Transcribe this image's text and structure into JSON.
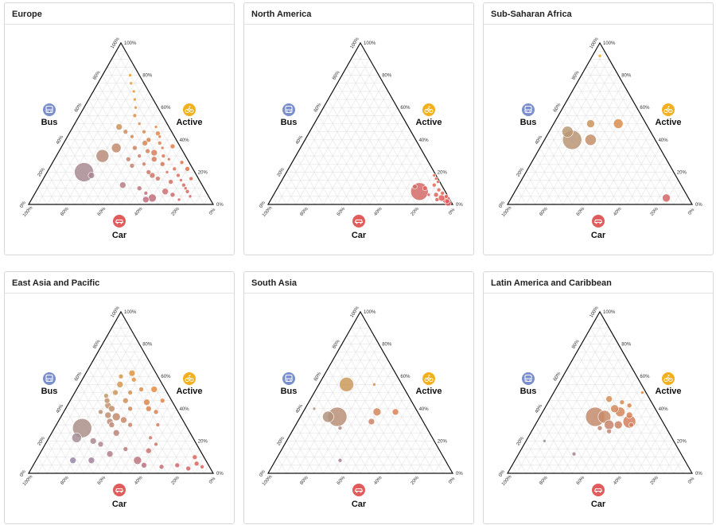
{
  "colors": {
    "bus": "#7a8fcb",
    "active": "#f2b01e",
    "car": "#e15c5c",
    "grid": "#e3e3e3",
    "axis": "#111111"
  },
  "icons": {
    "bus": "bus-icon",
    "active": "bicycle-icon",
    "car": "car-icon"
  },
  "chart_data": [
    {
      "type": "scatter",
      "title": "Europe",
      "corner_labels": {
        "top": "Active",
        "left": "Bus",
        "right": "Car"
      },
      "ticks": [
        "0%",
        "20%",
        "40%",
        "60%",
        "80%",
        "100%"
      ],
      "points": [
        {
          "active": 70,
          "car": 22,
          "bus": 8,
          "r": 2
        },
        {
          "active": 60,
          "car": 28,
          "bus": 12,
          "r": 2
        },
        {
          "active": 55,
          "car": 30,
          "bus": 15,
          "r": 2.5
        },
        {
          "active": 50,
          "car": 35,
          "bus": 15,
          "r": 2
        },
        {
          "active": 45,
          "car": 40,
          "bus": 15,
          "r": 2.5
        },
        {
          "active": 48,
          "car": 45,
          "bus": 7,
          "r": 2
        },
        {
          "active": 40,
          "car": 45,
          "bus": 15,
          "r": 3
        },
        {
          "active": 42,
          "car": 50,
          "bus": 8,
          "r": 2
        },
        {
          "active": 38,
          "car": 52,
          "bus": 10,
          "r": 2.5
        },
        {
          "active": 35,
          "car": 55,
          "bus": 10,
          "r": 2
        },
        {
          "active": 33,
          "car": 48,
          "bus": 19,
          "r": 3
        },
        {
          "active": 30,
          "car": 58,
          "bus": 12,
          "r": 2.5
        },
        {
          "active": 28,
          "car": 62,
          "bus": 10,
          "r": 2
        },
        {
          "active": 25,
          "car": 60,
          "bus": 15,
          "r": 3
        },
        {
          "active": 22,
          "car": 68,
          "bus": 10,
          "r": 2.5
        },
        {
          "active": 20,
          "car": 65,
          "bus": 15,
          "r": 2
        },
        {
          "active": 18,
          "car": 72,
          "bus": 10,
          "r": 2.5
        },
        {
          "active": 15,
          "car": 75,
          "bus": 10,
          "r": 2
        },
        {
          "active": 14,
          "car": 70,
          "bus": 16,
          "r": 3
        },
        {
          "active": 12,
          "car": 78,
          "bus": 10,
          "r": 2.5
        },
        {
          "active": 10,
          "car": 80,
          "bus": 10,
          "r": 2
        },
        {
          "active": 8,
          "car": 82,
          "bus": 10,
          "r": 2.5
        },
        {
          "active": 6,
          "car": 75,
          "bus": 19,
          "r": 3
        },
        {
          "active": 5,
          "car": 85,
          "bus": 10,
          "r": 2
        },
        {
          "active": 3,
          "car": 80,
          "bus": 17,
          "r": 2
        },
        {
          "active": 8,
          "car": 70,
          "bus": 22,
          "r": 4
        },
        {
          "active": 4,
          "car": 65,
          "bus": 31,
          "r": 5
        },
        {
          "active": 3,
          "car": 62,
          "bus": 35,
          "r": 4
        },
        {
          "active": 16,
          "car": 62,
          "bus": 22,
          "r": 3
        },
        {
          "active": 20,
          "car": 55,
          "bus": 25,
          "r": 3
        },
        {
          "active": 25,
          "car": 50,
          "bus": 25,
          "r": 2.5
        },
        {
          "active": 30,
          "car": 45,
          "bus": 25,
          "r": 2.5
        },
        {
          "active": 35,
          "car": 40,
          "bus": 25,
          "r": 3
        },
        {
          "active": 42,
          "car": 35,
          "bus": 23,
          "r": 2.5
        },
        {
          "active": 45,
          "car": 30,
          "bus": 25,
          "r": 3
        },
        {
          "active": 48,
          "car": 25,
          "bus": 27,
          "r": 4
        },
        {
          "active": 35,
          "car": 30,
          "bus": 35,
          "r": 6
        },
        {
          "active": 30,
          "car": 25,
          "bus": 45,
          "r": 8
        },
        {
          "active": 20,
          "car": 20,
          "bus": 60,
          "r": 12
        },
        {
          "active": 18,
          "car": 25,
          "bus": 57,
          "r": 4
        },
        {
          "active": 12,
          "car": 45,
          "bus": 43,
          "r": 4
        },
        {
          "active": 28,
          "car": 40,
          "bus": 32,
          "r": 3
        },
        {
          "active": 24,
          "car": 44,
          "bus": 32,
          "r": 3
        },
        {
          "active": 32,
          "car": 52,
          "bus": 16,
          "r": 4
        },
        {
          "active": 36,
          "car": 60,
          "bus": 4,
          "r": 3
        },
        {
          "active": 26,
          "car": 70,
          "bus": 4,
          "r": 2.5
        },
        {
          "active": 16,
          "car": 80,
          "bus": 4,
          "r": 2.5
        },
        {
          "active": 22,
          "car": 75,
          "bus": 3,
          "r": 3
        },
        {
          "active": 10,
          "car": 55,
          "bus": 35,
          "r": 3
        },
        {
          "active": 7,
          "car": 60,
          "bus": 33,
          "r": 2.5
        },
        {
          "active": 44,
          "car": 48,
          "bus": 8,
          "r": 3
        },
        {
          "active": 38,
          "car": 44,
          "bus": 18,
          "r": 3.5
        },
        {
          "active": 28,
          "car": 54,
          "bus": 18,
          "r": 3.5
        },
        {
          "active": 18,
          "car": 58,
          "bus": 24,
          "r": 3.5
        },
        {
          "active": 65,
          "car": 25,
          "bus": 10,
          "r": 2
        },
        {
          "active": 75,
          "car": 18,
          "bus": 7,
          "r": 2
        },
        {
          "active": 80,
          "car": 15,
          "bus": 5,
          "r": 2
        }
      ]
    },
    {
      "type": "scatter",
      "title": "North America",
      "corner_labels": {
        "top": "Active",
        "left": "Bus",
        "right": "Car"
      },
      "ticks": [
        "0%",
        "20%",
        "40%",
        "60%",
        "80%",
        "100%"
      ],
      "points": [
        {
          "active": 8,
          "car": 78,
          "bus": 14,
          "r": 11
        },
        {
          "active": 10,
          "car": 80,
          "bus": 10,
          "r": 3
        },
        {
          "active": 12,
          "car": 84,
          "bus": 4,
          "r": 2.5
        },
        {
          "active": 6,
          "car": 88,
          "bus": 6,
          "r": 3
        },
        {
          "active": 4,
          "car": 92,
          "bus": 4,
          "r": 4
        },
        {
          "active": 3,
          "car": 95,
          "bus": 2,
          "r": 5
        },
        {
          "active": 2,
          "car": 96,
          "bus": 2,
          "r": 3
        },
        {
          "active": 5,
          "car": 94,
          "bus": 1,
          "r": 2.5
        },
        {
          "active": 7,
          "car": 91,
          "bus": 2,
          "r": 2.5
        },
        {
          "active": 9,
          "car": 88,
          "bus": 3,
          "r": 2.5
        },
        {
          "active": 14,
          "car": 85,
          "bus": 1,
          "r": 2
        },
        {
          "active": 16,
          "car": 83,
          "bus": 1,
          "r": 2
        },
        {
          "active": 18,
          "car": 81,
          "bus": 1,
          "r": 2
        },
        {
          "active": 1,
          "car": 97,
          "bus": 2,
          "r": 4
        },
        {
          "active": 3,
          "car": 90,
          "bus": 7,
          "r": 2.5
        },
        {
          "active": 6,
          "car": 84,
          "bus": 10,
          "r": 2
        },
        {
          "active": 11,
          "car": 74,
          "bus": 15,
          "r": 3
        }
      ]
    },
    {
      "type": "scatter",
      "title": "Sub-Saharan Africa",
      "corner_labels": {
        "top": "Active",
        "left": "Bus",
        "right": "Car"
      },
      "ticks": [
        "0%",
        "20%",
        "40%",
        "60%",
        "80%",
        "100%"
      ],
      "points": [
        {
          "active": 92,
          "car": 4,
          "bus": 4,
          "r": 2
        },
        {
          "active": 50,
          "car": 20,
          "bus": 30,
          "r": 5
        },
        {
          "active": 40,
          "car": 15,
          "bus": 45,
          "r": 12
        },
        {
          "active": 45,
          "car": 10,
          "bus": 45,
          "r": 7
        },
        {
          "active": 40,
          "car": 25,
          "bus": 35,
          "r": 7
        },
        {
          "active": 50,
          "car": 35,
          "bus": 15,
          "r": 6
        },
        {
          "active": 4,
          "car": 84,
          "bus": 12,
          "r": 5
        }
      ]
    },
    {
      "type": "scatter",
      "title": "East Asia and Pacific",
      "corner_labels": {
        "top": "Active",
        "left": "Bus",
        "right": "Car"
      },
      "ticks": [
        "0%",
        "20%",
        "40%",
        "60%",
        "80%",
        "100%"
      ],
      "points": [
        {
          "active": 60,
          "car": 20,
          "bus": 20,
          "r": 3
        },
        {
          "active": 55,
          "car": 22,
          "bus": 23,
          "r": 4
        },
        {
          "active": 50,
          "car": 22,
          "bus": 28,
          "r": 3.5
        },
        {
          "active": 48,
          "car": 18,
          "bus": 34,
          "r": 3
        },
        {
          "active": 45,
          "car": 20,
          "bus": 35,
          "r": 3.5
        },
        {
          "active": 42,
          "car": 22,
          "bus": 36,
          "r": 4
        },
        {
          "active": 40,
          "car": 25,
          "bus": 35,
          "r": 4
        },
        {
          "active": 38,
          "car": 20,
          "bus": 42,
          "r": 3
        },
        {
          "active": 36,
          "car": 25,
          "bus": 39,
          "r": 4
        },
        {
          "active": 35,
          "car": 30,
          "bus": 35,
          "r": 5
        },
        {
          "active": 32,
          "car": 28,
          "bus": 40,
          "r": 4
        },
        {
          "active": 30,
          "car": 30,
          "bus": 40,
          "r": 3.5
        },
        {
          "active": 33,
          "car": 35,
          "bus": 32,
          "r": 4
        },
        {
          "active": 40,
          "car": 35,
          "bus": 25,
          "r": 3
        },
        {
          "active": 45,
          "car": 30,
          "bus": 25,
          "r": 3.5
        },
        {
          "active": 50,
          "car": 30,
          "bus": 20,
          "r": 3
        },
        {
          "active": 52,
          "car": 35,
          "bus": 13,
          "r": 3
        },
        {
          "active": 44,
          "car": 42,
          "bus": 14,
          "r": 4
        },
        {
          "active": 40,
          "car": 45,
          "bus": 15,
          "r": 3.5
        },
        {
          "active": 38,
          "car": 50,
          "bus": 12,
          "r": 3
        },
        {
          "active": 30,
          "car": 40,
          "bus": 30,
          "r": 3
        },
        {
          "active": 28,
          "car": 15,
          "bus": 57,
          "r": 12
        },
        {
          "active": 22,
          "car": 15,
          "bus": 63,
          "r": 6
        },
        {
          "active": 20,
          "car": 25,
          "bus": 55,
          "r": 4
        },
        {
          "active": 18,
          "car": 30,
          "bus": 52,
          "r": 3.5
        },
        {
          "active": 25,
          "car": 35,
          "bus": 40,
          "r": 4
        },
        {
          "active": 15,
          "car": 45,
          "bus": 40,
          "r": 3
        },
        {
          "active": 12,
          "car": 38,
          "bus": 50,
          "r": 4
        },
        {
          "active": 8,
          "car": 20,
          "bus": 72,
          "r": 4
        },
        {
          "active": 8,
          "car": 30,
          "bus": 62,
          "r": 4
        },
        {
          "active": 8,
          "car": 55,
          "bus": 37,
          "r": 5
        },
        {
          "active": 5,
          "car": 60,
          "bus": 35,
          "r": 3.5
        },
        {
          "active": 5,
          "car": 78,
          "bus": 17,
          "r": 3
        },
        {
          "active": 4,
          "car": 70,
          "bus": 26,
          "r": 3
        },
        {
          "active": 3,
          "car": 85,
          "bus": 12,
          "r": 3
        },
        {
          "active": 6,
          "car": 88,
          "bus": 6,
          "r": 3
        },
        {
          "active": 10,
          "car": 85,
          "bus": 5,
          "r": 3
        },
        {
          "active": 4,
          "car": 92,
          "bus": 4,
          "r": 2.5
        },
        {
          "active": 18,
          "car": 60,
          "bus": 22,
          "r": 2.5
        },
        {
          "active": 22,
          "car": 55,
          "bus": 23,
          "r": 2.5
        },
        {
          "active": 14,
          "car": 58,
          "bus": 28,
          "r": 3.5
        },
        {
          "active": 52,
          "car": 42,
          "bus": 6,
          "r": 4
        },
        {
          "active": 45,
          "car": 50,
          "bus": 5,
          "r": 3
        },
        {
          "active": 30,
          "car": 55,
          "bus": 15,
          "r": 2.5
        },
        {
          "active": 62,
          "car": 25,
          "bus": 13,
          "r": 4
        },
        {
          "active": 58,
          "car": 28,
          "bus": 14,
          "r": 3
        }
      ]
    },
    {
      "type": "scatter",
      "title": "South Asia",
      "corner_labels": {
        "top": "Active",
        "left": "Bus",
        "right": "Car"
      },
      "ticks": [
        "0%",
        "20%",
        "40%",
        "60%",
        "80%",
        "100%"
      ],
      "points": [
        {
          "active": 55,
          "car": 15,
          "bus": 30,
          "r": 9
        },
        {
          "active": 55,
          "car": 30,
          "bus": 15,
          "r": 2
        },
        {
          "active": 35,
          "car": 20,
          "bus": 45,
          "r": 12
        },
        {
          "active": 35,
          "car": 15,
          "bus": 50,
          "r": 7
        },
        {
          "active": 38,
          "car": 40,
          "bus": 22,
          "r": 5
        },
        {
          "active": 32,
          "car": 40,
          "bus": 28,
          "r": 4
        },
        {
          "active": 38,
          "car": 50,
          "bus": 12,
          "r": 4
        },
        {
          "active": 28,
          "car": 25,
          "bus": 47,
          "r": 2.5
        },
        {
          "active": 8,
          "car": 35,
          "bus": 57,
          "r": 2.5
        },
        {
          "active": 40,
          "car": 5,
          "bus": 55,
          "r": 2
        }
      ]
    },
    {
      "type": "scatter",
      "title": "Latin America and Caribbean",
      "corner_labels": {
        "top": "Active",
        "left": "Bus",
        "right": "Car"
      },
      "ticks": [
        "0%",
        "20%",
        "40%",
        "60%",
        "80%",
        "100%"
      ],
      "points": [
        {
          "active": 35,
          "car": 30,
          "bus": 35,
          "r": 12
        },
        {
          "active": 35,
          "car": 35,
          "bus": 30,
          "r": 8
        },
        {
          "active": 30,
          "car": 40,
          "bus": 30,
          "r": 6
        },
        {
          "active": 38,
          "car": 42,
          "bus": 20,
          "r": 6
        },
        {
          "active": 40,
          "car": 38,
          "bus": 22,
          "r": 5
        },
        {
          "active": 30,
          "car": 45,
          "bus": 25,
          "r": 5
        },
        {
          "active": 32,
          "car": 50,
          "bus": 18,
          "r": 8
        },
        {
          "active": 36,
          "car": 48,
          "bus": 16,
          "r": 4
        },
        {
          "active": 42,
          "car": 45,
          "bus": 13,
          "r": 3
        },
        {
          "active": 44,
          "car": 40,
          "bus": 16,
          "r": 3
        },
        {
          "active": 28,
          "car": 36,
          "bus": 36,
          "r": 3
        },
        {
          "active": 26,
          "car": 42,
          "bus": 32,
          "r": 3
        },
        {
          "active": 30,
          "car": 52,
          "bus": 18,
          "r": 3
        },
        {
          "active": 50,
          "car": 48,
          "bus": 2,
          "r": 2
        },
        {
          "active": 20,
          "car": 10,
          "bus": 70,
          "r": 2
        },
        {
          "active": 12,
          "car": 30,
          "bus": 58,
          "r": 2.5
        },
        {
          "active": 46,
          "car": 32,
          "bus": 22,
          "r": 4
        }
      ]
    }
  ]
}
